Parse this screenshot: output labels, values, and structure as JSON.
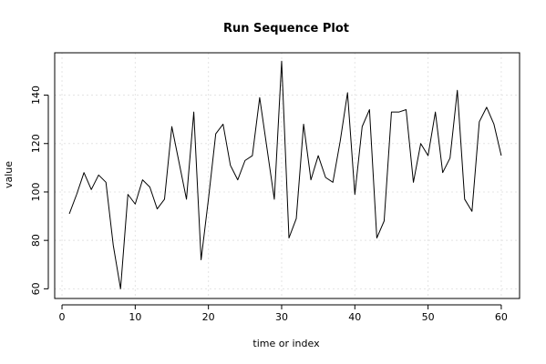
{
  "chart_data": {
    "type": "line",
    "title": "Run Sequence Plot",
    "xlabel": "time or index",
    "ylabel": "value",
    "xlim": [
      -1,
      62.5
    ],
    "ylim": [
      56,
      157.5
    ],
    "xticks": [
      0,
      10,
      20,
      30,
      40,
      50,
      60
    ],
    "yticks": [
      60,
      80,
      100,
      120,
      140
    ],
    "grid": true,
    "line_color": "#000000",
    "x": [
      1,
      2,
      3,
      4,
      5,
      6,
      7,
      8,
      9,
      10,
      11,
      12,
      13,
      14,
      15,
      16,
      17,
      18,
      19,
      20,
      21,
      22,
      23,
      24,
      25,
      26,
      27,
      28,
      29,
      30,
      31,
      32,
      33,
      34,
      35,
      36,
      37,
      38,
      39,
      40,
      41,
      42,
      43,
      44,
      45,
      46,
      47,
      48,
      49,
      50,
      51,
      52,
      53,
      54,
      55,
      56,
      57,
      58,
      59,
      60
    ],
    "y": [
      91,
      99,
      108,
      101,
      107,
      104,
      78,
      60,
      99,
      95,
      105,
      102,
      93,
      97,
      127,
      112,
      97,
      133,
      72,
      97,
      124,
      128,
      111,
      105,
      113,
      115,
      139,
      118,
      97,
      154,
      81,
      89,
      128,
      105,
      115,
      106,
      104,
      121,
      141,
      99,
      127,
      134,
      81,
      88,
      133,
      133,
      134,
      104,
      120,
      115,
      133,
      108,
      114,
      142,
      97,
      92,
      129,
      135,
      128,
      115
    ]
  }
}
